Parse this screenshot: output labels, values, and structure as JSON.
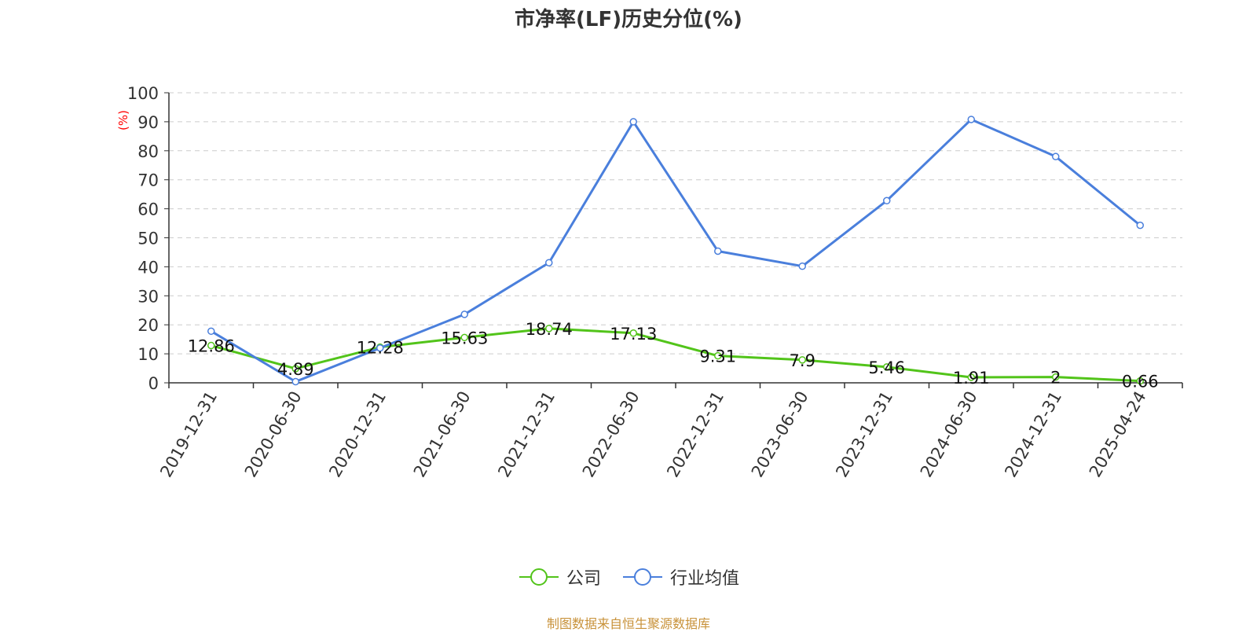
{
  "chart_data": {
    "type": "line",
    "title": "市净率(LF)历史分位(%)",
    "ylabel": "(%)",
    "xlabel": "",
    "ylim": [
      0,
      100
    ],
    "yticks": [
      0,
      10,
      20,
      30,
      40,
      50,
      60,
      70,
      80,
      90,
      100
    ],
    "categories": [
      "2019-12-31",
      "2020-06-30",
      "2020-12-31",
      "2021-06-30",
      "2021-12-31",
      "2022-06-30",
      "2022-12-31",
      "2023-06-30",
      "2023-12-31",
      "2024-06-30",
      "2024-12-31",
      "2025-04-24"
    ],
    "grid": true,
    "legend_position": "bottom",
    "series": [
      {
        "name": "公司",
        "color": "#52c41a",
        "values": [
          12.86,
          4.89,
          12.28,
          15.63,
          18.74,
          17.13,
          9.31,
          7.9,
          5.46,
          1.91,
          2,
          0.66
        ],
        "labels": [
          "12.86",
          "4.89",
          "12.28",
          "15.63",
          "18.74",
          "17.13",
          "9.31",
          "7.9",
          "5.46",
          "1.91",
          "2",
          "0.66"
        ]
      },
      {
        "name": "行业均值",
        "color": "#4a7fdc",
        "values": [
          17.8,
          0.4,
          12.0,
          23.6,
          41.4,
          90.0,
          45.4,
          40.2,
          62.8,
          90.8,
          78.0,
          54.3
        ]
      }
    ]
  },
  "footer": {
    "source": "制图数据来自恒生聚源数据库"
  },
  "colors": {
    "axis": "#333333",
    "grid": "#cccccc",
    "ylabel": "#ff0000",
    "source": "#c8923a"
  }
}
